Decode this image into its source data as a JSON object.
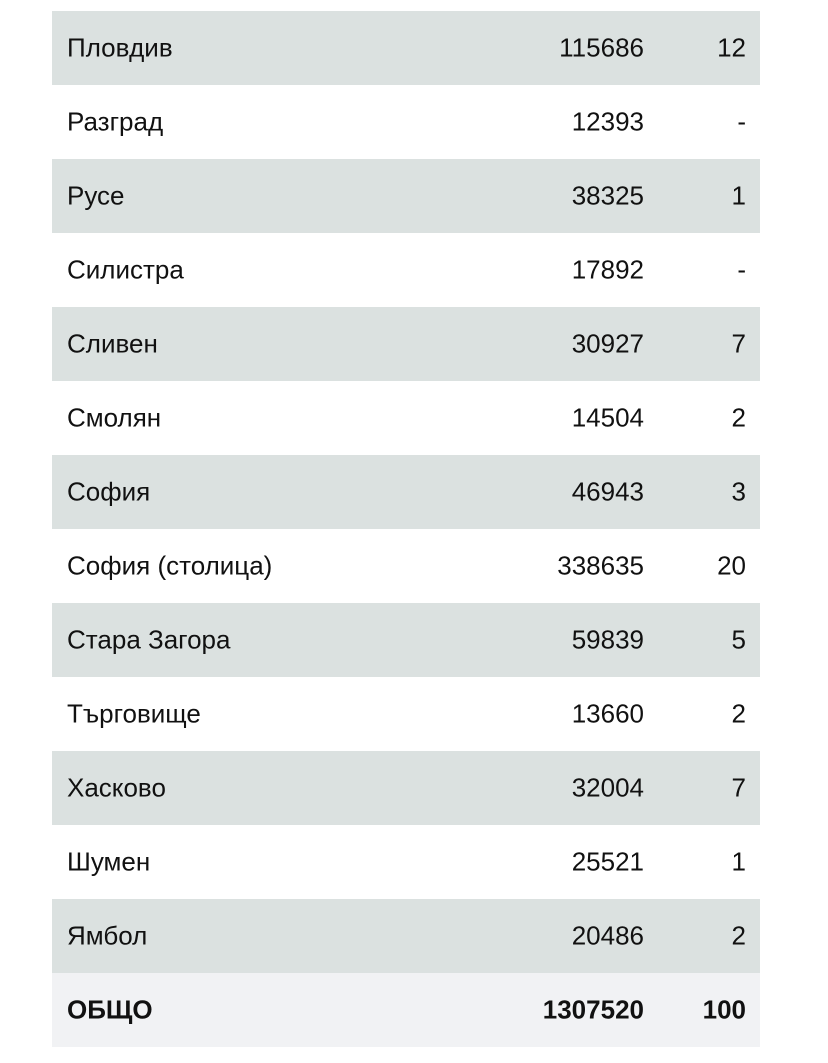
{
  "rows": [
    {
      "name": "Пловдив",
      "value": "115686",
      "count": "12"
    },
    {
      "name": "Разград",
      "value": "12393",
      "count": "-"
    },
    {
      "name": "Русе",
      "value": "38325",
      "count": "1"
    },
    {
      "name": "Силистра",
      "value": "17892",
      "count": "-"
    },
    {
      "name": "Сливен",
      "value": "30927",
      "count": "7"
    },
    {
      "name": "Смолян",
      "value": "14504",
      "count": "2"
    },
    {
      "name": "София",
      "value": "46943",
      "count": "3"
    },
    {
      "name": "София (столица)",
      "value": "338635",
      "count": "20"
    },
    {
      "name": "Стара Загора",
      "value": "59839",
      "count": "5"
    },
    {
      "name": "Търговище",
      "value": "13660",
      "count": "2"
    },
    {
      "name": "Хасково",
      "value": "32004",
      "count": "7"
    },
    {
      "name": "Шумен",
      "value": "25521",
      "count": "1"
    },
    {
      "name": "Ямбол",
      "value": "20486",
      "count": "2"
    }
  ],
  "total": {
    "name": "ОБЩО",
    "value": "1307520",
    "count": "100"
  },
  "colors": {
    "shaded_row": "#dbe1e0",
    "total_row": "#f1f2f4"
  }
}
